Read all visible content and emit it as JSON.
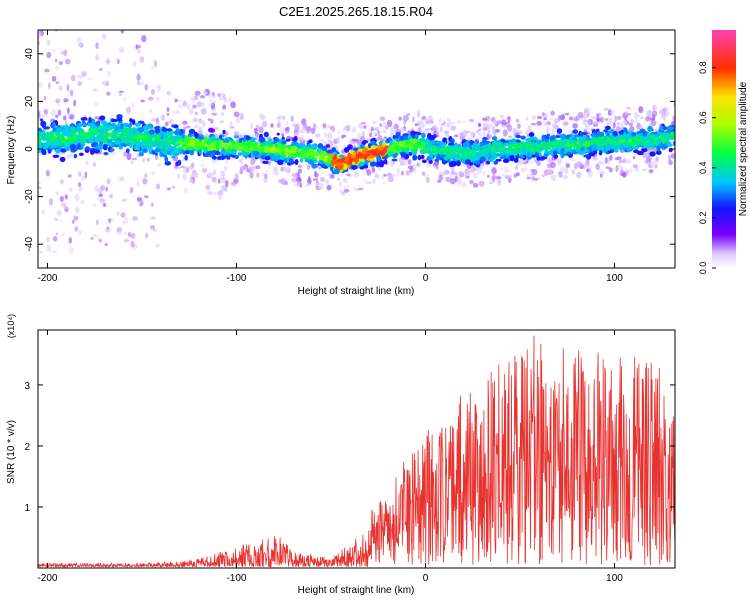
{
  "title": "C2E1.2025.265.18.15.R04",
  "chart_data": [
    {
      "type": "heatmap",
      "xlabel": "Height of straight line (km)",
      "ylabel": "Frequency (Hz)",
      "xlim": [
        -205,
        132
      ],
      "ylim": [
        -50,
        50
      ],
      "xticks": [
        -200,
        -100,
        0,
        100
      ],
      "yticks": [
        -40,
        -20,
        0,
        20,
        40
      ],
      "ridge": [
        {
          "x": -200,
          "y": 4
        },
        {
          "x": -180,
          "y": 6
        },
        {
          "x": -160,
          "y": 6
        },
        {
          "x": -140,
          "y": 3
        },
        {
          "x": -120,
          "y": 2
        },
        {
          "x": -100,
          "y": 1
        },
        {
          "x": -80,
          "y": 0
        },
        {
          "x": -60,
          "y": -2
        },
        {
          "x": -45,
          "y": -6
        },
        {
          "x": -35,
          "y": -3
        },
        {
          "x": -20,
          "y": 0
        },
        {
          "x": -10,
          "y": 2
        },
        {
          "x": 0,
          "y": 1
        },
        {
          "x": 10,
          "y": -1
        },
        {
          "x": 20,
          "y": -2
        },
        {
          "x": 40,
          "y": 0
        },
        {
          "x": 60,
          "y": 1
        },
        {
          "x": 80,
          "y": 2
        },
        {
          "x": 100,
          "y": 3
        },
        {
          "x": 120,
          "y": 4
        },
        {
          "x": 132,
          "y": 5
        }
      ],
      "colorbar": {
        "label": "Normalized spectral amplitude",
        "range": [
          0,
          0.95
        ],
        "ticks": [
          0.0,
          0.2,
          0.4,
          0.6,
          0.8
        ]
      }
    },
    {
      "type": "line",
      "xlabel": "Height of straight line (km)",
      "ylabel": "SNR (10 * v/v)",
      "multiplier": "(x10⁴)",
      "xlim": [
        -205,
        132
      ],
      "ylim": [
        0,
        3.9
      ],
      "xticks": [
        -200,
        -100,
        0,
        100
      ],
      "yticks": [
        1,
        2,
        3
      ],
      "color": "#e8322f",
      "envelope": [
        {
          "x": -205,
          "y": 0.08
        },
        {
          "x": -150,
          "y": 0.08
        },
        {
          "x": -125,
          "y": 0.12
        },
        {
          "x": -110,
          "y": 0.25
        },
        {
          "x": -90,
          "y": 0.45
        },
        {
          "x": -80,
          "y": 0.6
        },
        {
          "x": -70,
          "y": 0.3
        },
        {
          "x": -50,
          "y": 0.15
        },
        {
          "x": -35,
          "y": 0.55
        },
        {
          "x": -30,
          "y": 0.9
        },
        {
          "x": -20,
          "y": 1.3
        },
        {
          "x": -10,
          "y": 1.9
        },
        {
          "x": 0,
          "y": 2.3
        },
        {
          "x": 10,
          "y": 2.4
        },
        {
          "x": 20,
          "y": 2.9
        },
        {
          "x": 30,
          "y": 3.3
        },
        {
          "x": 45,
          "y": 3.5
        },
        {
          "x": 60,
          "y": 3.9
        },
        {
          "x": 80,
          "y": 3.6
        },
        {
          "x": 100,
          "y": 3.5
        },
        {
          "x": 120,
          "y": 3.5
        },
        {
          "x": 132,
          "y": 3.3
        }
      ]
    }
  ]
}
